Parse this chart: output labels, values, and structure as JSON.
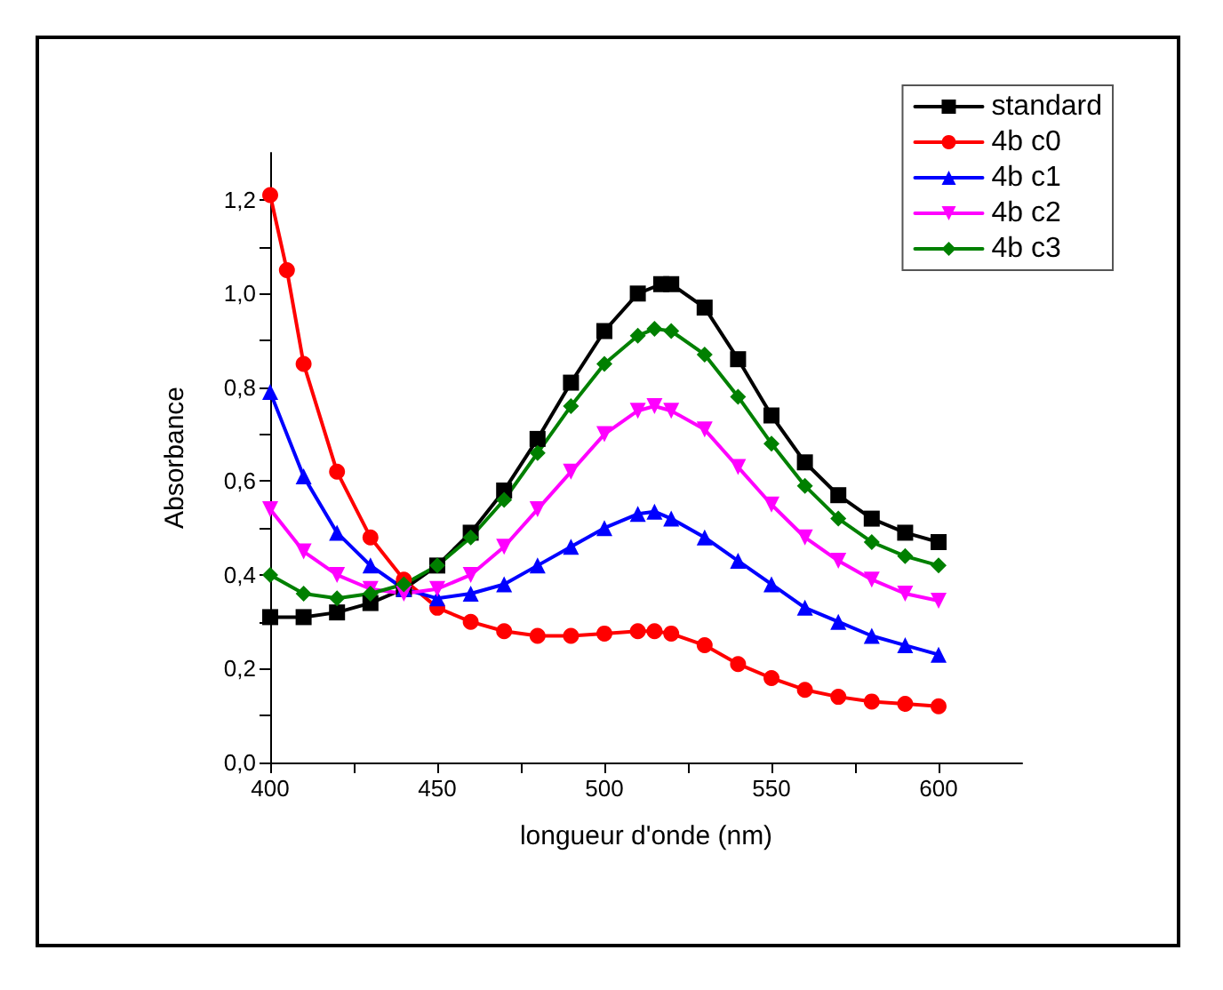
{
  "chart_data": {
    "type": "line",
    "xlabel": "longueur d'onde (nm)",
    "ylabel": "Absorbance",
    "xlim": [
      400,
      625
    ],
    "ylim": [
      0,
      1.3
    ],
    "xticks": [
      400,
      {
        "value": 425,
        "label": null
      },
      450,
      {
        "value": 475,
        "label": null
      },
      500,
      {
        "value": 525,
        "label": null
      },
      550,
      {
        "value": 575,
        "label": null
      },
      600
    ],
    "yticks": [
      {
        "value": 0,
        "label": "0,0"
      },
      {
        "value": 0.1,
        "label": null
      },
      {
        "value": 0.2,
        "label": "0,2"
      },
      {
        "value": 0.3,
        "label": null
      },
      {
        "value": 0.4,
        "label": "0,4"
      },
      {
        "value": 0.5,
        "label": null
      },
      {
        "value": 0.6,
        "label": "0,6"
      },
      {
        "value": 0.7,
        "label": null
      },
      {
        "value": 0.8,
        "label": "0,8"
      },
      {
        "value": 0.9,
        "label": null
      },
      {
        "value": 1.0,
        "label": "1,0"
      },
      {
        "value": 1.1,
        "label": null
      },
      {
        "value": 1.2,
        "label": "1,2"
      }
    ],
    "grid": false,
    "legend": "top right",
    "series": [
      {
        "name": "standard",
        "color": "#000000",
        "marker": "square",
        "x": [
          400,
          410,
          420,
          430,
          440,
          450,
          460,
          470,
          480,
          490,
          500,
          510,
          517,
          520,
          530,
          540,
          550,
          560,
          570,
          580,
          590,
          600
        ],
        "values": [
          0.31,
          0.31,
          0.32,
          0.34,
          0.37,
          0.42,
          0.49,
          0.58,
          0.69,
          0.81,
          0.92,
          1.0,
          1.02,
          1.02,
          0.97,
          0.86,
          0.74,
          0.64,
          0.57,
          0.52,
          0.49,
          0.47
        ]
      },
      {
        "name": "4b c0",
        "color": "#ff0000",
        "marker": "circle",
        "x": [
          400,
          405,
          410,
          420,
          430,
          440,
          450,
          460,
          470,
          480,
          490,
          500,
          510,
          515,
          520,
          530,
          540,
          550,
          560,
          570,
          580,
          590,
          600
        ],
        "values": [
          1.21,
          1.05,
          0.85,
          0.62,
          0.48,
          0.39,
          0.33,
          0.3,
          0.28,
          0.27,
          0.27,
          0.275,
          0.28,
          0.28,
          0.275,
          0.25,
          0.21,
          0.18,
          0.155,
          0.14,
          0.13,
          0.125,
          0.12
        ]
      },
      {
        "name": "4b c1",
        "color": "#0000ff",
        "marker": "triangle",
        "x": [
          400,
          410,
          420,
          430,
          440,
          450,
          460,
          470,
          480,
          490,
          500,
          510,
          515,
          520,
          530,
          540,
          550,
          560,
          570,
          580,
          590,
          600
        ],
        "values": [
          0.79,
          0.61,
          0.49,
          0.42,
          0.37,
          0.35,
          0.36,
          0.38,
          0.42,
          0.46,
          0.5,
          0.53,
          0.535,
          0.52,
          0.48,
          0.43,
          0.38,
          0.33,
          0.3,
          0.27,
          0.25,
          0.23
        ]
      },
      {
        "name": "4b c2",
        "color": "#ff00ff",
        "marker": "triangle-down",
        "x": [
          400,
          410,
          420,
          430,
          440,
          450,
          460,
          470,
          480,
          490,
          500,
          510,
          515,
          520,
          530,
          540,
          550,
          560,
          570,
          580,
          590,
          600
        ],
        "values": [
          0.54,
          0.45,
          0.4,
          0.37,
          0.36,
          0.37,
          0.4,
          0.46,
          0.54,
          0.62,
          0.7,
          0.75,
          0.76,
          0.75,
          0.71,
          0.63,
          0.55,
          0.48,
          0.43,
          0.39,
          0.36,
          0.345
        ]
      },
      {
        "name": "4b c3",
        "color": "#008000",
        "marker": "diamond",
        "x": [
          400,
          410,
          420,
          430,
          440,
          450,
          460,
          470,
          480,
          490,
          500,
          510,
          515,
          520,
          530,
          540,
          550,
          560,
          570,
          580,
          590,
          600
        ],
        "values": [
          0.4,
          0.36,
          0.35,
          0.36,
          0.38,
          0.42,
          0.48,
          0.56,
          0.66,
          0.76,
          0.85,
          0.91,
          0.925,
          0.92,
          0.87,
          0.78,
          0.68,
          0.59,
          0.52,
          0.47,
          0.44,
          0.42
        ]
      }
    ]
  }
}
